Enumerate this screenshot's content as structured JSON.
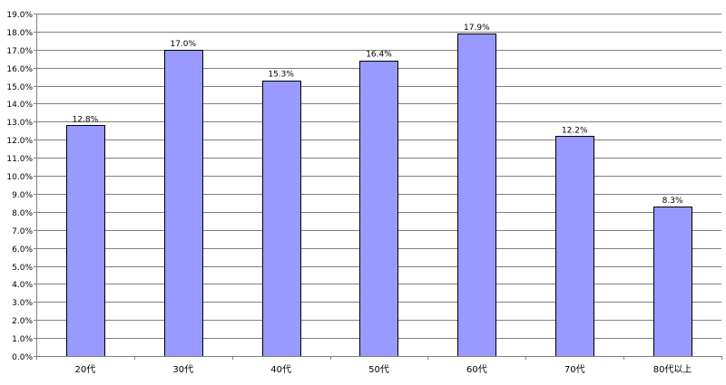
{
  "chart_data": {
    "type": "bar",
    "categories": [
      "20代",
      "30代",
      "40代",
      "50代",
      "60代",
      "70代",
      "80代以上"
    ],
    "values": [
      12.8,
      17.0,
      15.3,
      16.4,
      17.9,
      12.2,
      8.3
    ],
    "data_labels": [
      "12.8%",
      "17.0%",
      "15.3%",
      "16.4%",
      "17.9%",
      "12.2%",
      "8.3%"
    ],
    "y_ticks": [
      0,
      1,
      2,
      3,
      4,
      5,
      6,
      7,
      8,
      9,
      10,
      11,
      12,
      13,
      14,
      15,
      16,
      17,
      18,
      19
    ],
    "y_tick_labels": [
      "0.0%",
      "1.0%",
      "2.0%",
      "3.0%",
      "4.0%",
      "5.0%",
      "6.0%",
      "7.0%",
      "8.0%",
      "9.0%",
      "10.0%",
      "11.0%",
      "12.0%",
      "13.0%",
      "14.0%",
      "15.0%",
      "16.0%",
      "17.0%",
      "18.0%",
      "19.0%"
    ],
    "ylim": [
      0,
      19
    ],
    "grid": true,
    "legend": "none",
    "colors": {
      "bar": "#9999ff",
      "bar_border": "#000000",
      "grid": "#808080",
      "axis": "#808080"
    }
  }
}
